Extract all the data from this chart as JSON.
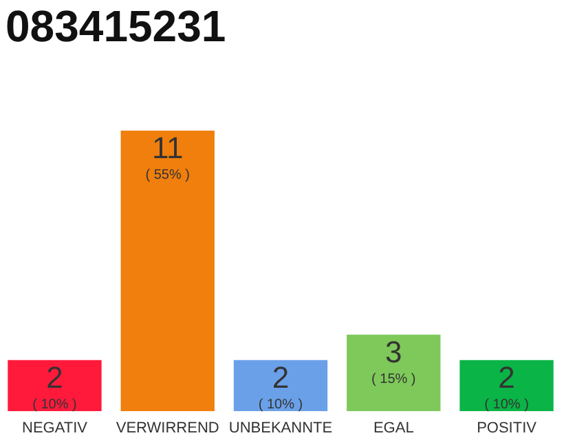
{
  "chart_data": {
    "type": "bar",
    "title": "083415231",
    "categories": [
      "NEGATIV",
      "VERWIRREND",
      "UNBEKANNTE",
      "EGAL",
      "POSITIV"
    ],
    "values": [
      2,
      11,
      2,
      3,
      2
    ],
    "colors": [
      "#ff1a3c",
      "#f07f0d",
      "#6aa0e8",
      "#7ec95a",
      "#0ab446"
    ],
    "data_labels": true,
    "annotations": [
      {
        "text": "( 10% )",
        "x": "NEGATIV",
        "y": 2
      },
      {
        "text": "( 55% )",
        "x": "VERWIRREND",
        "y": 11
      },
      {
        "text": "( 10% )",
        "x": "UNBEKANNTE",
        "y": 2
      },
      {
        "text": "( 15% )",
        "x": "EGAL",
        "y": 3
      },
      {
        "text": "( 10% )",
        "x": "POSITIV",
        "y": 2
      }
    ]
  }
}
